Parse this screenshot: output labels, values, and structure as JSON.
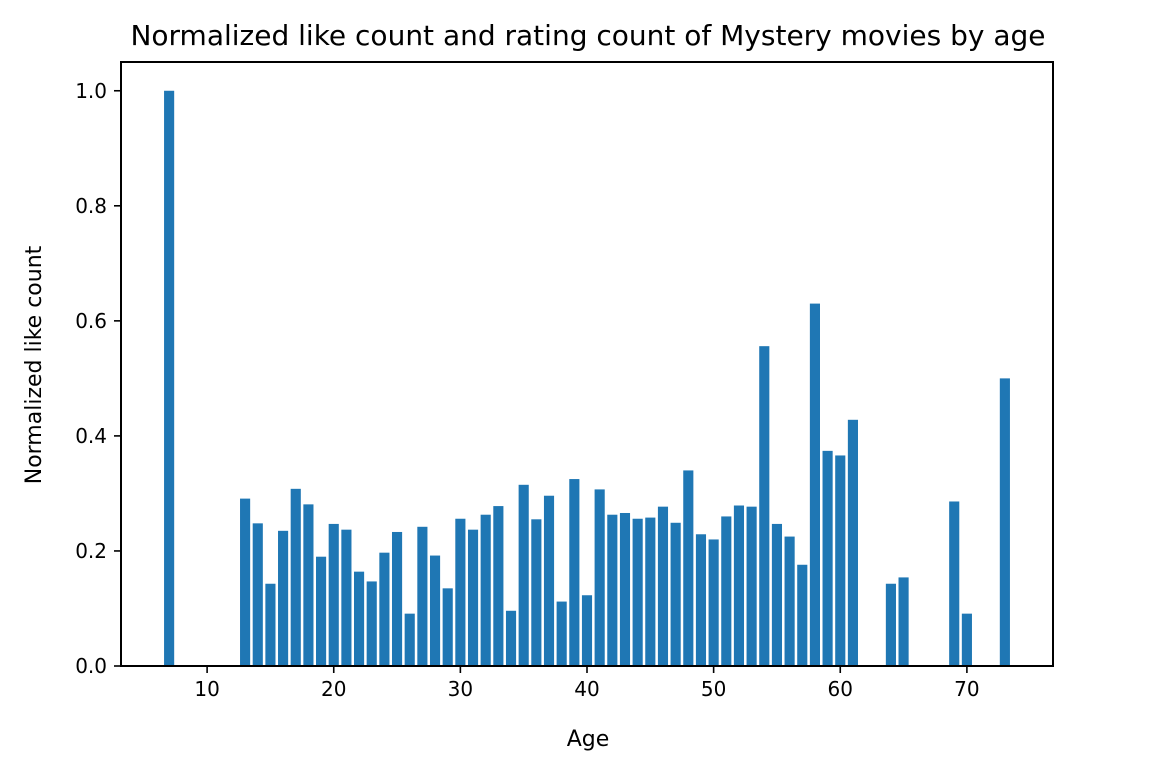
{
  "chart_data": {
    "type": "bar",
    "title": "Normalized like count and rating count of Mystery movies by age",
    "xlabel": "Age",
    "ylabel": "Normalized like count",
    "xlim": [
      3.2,
      76.8
    ],
    "ylim": [
      0.0,
      1.05
    ],
    "xticks": [
      10,
      20,
      30,
      40,
      50,
      60,
      70
    ],
    "yticks": [
      0.0,
      0.2,
      0.4,
      0.6,
      0.8,
      1.0
    ],
    "ytick_labels": [
      "0.0",
      "0.2",
      "0.4",
      "0.6",
      "0.8",
      "1.0"
    ],
    "grid": false,
    "bar_width": 0.8,
    "bar_color": "#1f77b4",
    "x": [
      7,
      13,
      14,
      15,
      16,
      17,
      18,
      19,
      20,
      21,
      22,
      23,
      24,
      25,
      26,
      27,
      28,
      29,
      30,
      31,
      32,
      33,
      34,
      35,
      36,
      37,
      38,
      39,
      40,
      41,
      42,
      43,
      44,
      45,
      46,
      47,
      48,
      49,
      50,
      51,
      52,
      53,
      54,
      55,
      56,
      57,
      58,
      59,
      60,
      61,
      64,
      65,
      69,
      70,
      73
    ],
    "values": [
      1.0,
      0.291,
      0.248,
      0.143,
      0.235,
      0.308,
      0.281,
      0.19,
      0.247,
      0.237,
      0.164,
      0.147,
      0.197,
      0.233,
      0.091,
      0.242,
      0.192,
      0.135,
      0.256,
      0.237,
      0.263,
      0.278,
      0.096,
      0.315,
      0.255,
      0.296,
      0.112,
      0.325,
      0.123,
      0.307,
      0.263,
      0.266,
      0.256,
      0.258,
      0.277,
      0.249,
      0.34,
      0.229,
      0.22,
      0.26,
      0.279,
      0.277,
      0.556,
      0.247,
      0.225,
      0.176,
      0.63,
      0.374,
      0.366,
      0.428,
      0.143,
      0.154,
      0.286,
      0.091,
      0.5
    ]
  }
}
